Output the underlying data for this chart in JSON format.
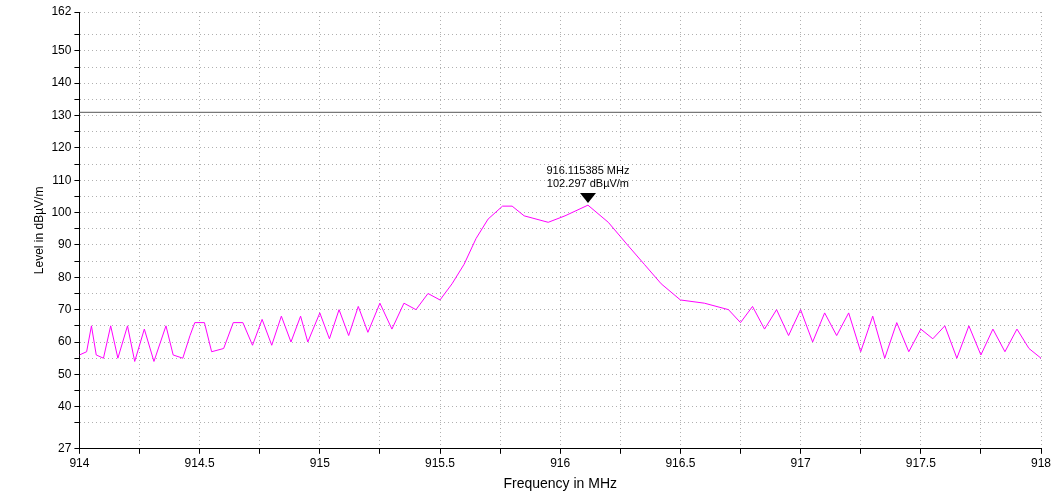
{
  "chart_data": {
    "type": "line",
    "xlabel": "Frequency in MHz",
    "ylabel": "Level in dBµV/m",
    "xlim": [
      914,
      918
    ],
    "xticks": [
      914,
      {
        "value": 914.25,
        "label": null
      },
      914.5,
      {
        "value": 914.75,
        "label": null
      },
      915,
      {
        "value": 915.25,
        "label": null
      },
      915.5,
      {
        "value": 915.75,
        "label": null
      },
      916,
      {
        "value": 916.25,
        "label": null
      },
      916.5,
      {
        "value": 916.75,
        "label": null
      },
      917,
      {
        "value": 917.25,
        "label": null
      },
      917.5,
      {
        "value": 917.75,
        "label": null
      },
      918
    ],
    "ylim": [
      27,
      162
    ],
    "yticks": [
      27,
      {
        "value": 35,
        "label": null
      },
      40,
      {
        "value": 45,
        "label": null
      },
      50,
      {
        "value": 55,
        "label": null
      },
      60,
      {
        "value": 65,
        "label": null
      },
      70,
      {
        "value": 75,
        "label": null
      },
      80,
      {
        "value": 85,
        "label": null
      },
      90,
      {
        "value": 95,
        "label": null
      },
      100,
      {
        "value": 105,
        "label": null
      },
      110,
      {
        "value": 115,
        "label": null
      },
      120,
      {
        "value": 125,
        "label": null
      },
      130,
      {
        "value": 135,
        "label": null
      },
      140,
      {
        "value": 145,
        "label": null
      },
      150,
      {
        "value": 155,
        "label": null
      },
      162
    ],
    "grid": true,
    "legend": false,
    "marker": "none",
    "line_style": "solid",
    "ref_lines": [
      {
        "axis": "y",
        "value": 131,
        "color": "#555555"
      }
    ],
    "annotations": [
      {
        "text": "916.115385 MHz\n102.297 dBµV/m",
        "x": 916.115385,
        "y": 102.297
      }
    ],
    "series": [
      {
        "color": "#ff00ff",
        "x": [
          914,
          914.03,
          914.05,
          914.07,
          914.1,
          914.13,
          914.16,
          914.2,
          914.23,
          914.27,
          914.31,
          914.36,
          914.39,
          914.43,
          914.46,
          914.48,
          914.52,
          914.55,
          914.6,
          914.64,
          914.68,
          914.72,
          914.76,
          914.8,
          914.84,
          914.88,
          914.92,
          914.95,
          915,
          915.04,
          915.08,
          915.12,
          915.16,
          915.2,
          915.25,
          915.3,
          915.35,
          915.4,
          915.45,
          915.5,
          915.55,
          915.6,
          915.65,
          915.7,
          915.76,
          915.8,
          915.85,
          915.95,
          916.02,
          916.115385,
          916.2,
          916.28,
          916.35,
          916.42,
          916.5,
          916.6,
          916.7,
          916.75,
          916.8,
          916.85,
          916.9,
          916.95,
          917,
          917.05,
          917.1,
          917.15,
          917.2,
          917.25,
          917.3,
          917.35,
          917.4,
          917.45,
          917.5,
          917.55,
          917.6,
          917.65,
          917.7,
          917.75,
          917.8,
          917.85,
          917.9,
          917.95,
          918
        ],
        "values": [
          56,
          57,
          65,
          56,
          55,
          65,
          55,
          65,
          54,
          64,
          54,
          65,
          56,
          55,
          62,
          66,
          66,
          57,
          58,
          66,
          66,
          59,
          67,
          59,
          68,
          60,
          68,
          60,
          69,
          61,
          70,
          62,
          71,
          63,
          72,
          64,
          72,
          70,
          75,
          73,
          78,
          84,
          92,
          98,
          102,
          102,
          99,
          97,
          99,
          102.3,
          97,
          90,
          84,
          78,
          73,
          72,
          70,
          66,
          71,
          64,
          70,
          62,
          70,
          60,
          69,
          62,
          69,
          57,
          68,
          55,
          66,
          57,
          64,
          61,
          65,
          55,
          65,
          56,
          64,
          57,
          64,
          58,
          55
        ]
      }
    ]
  }
}
